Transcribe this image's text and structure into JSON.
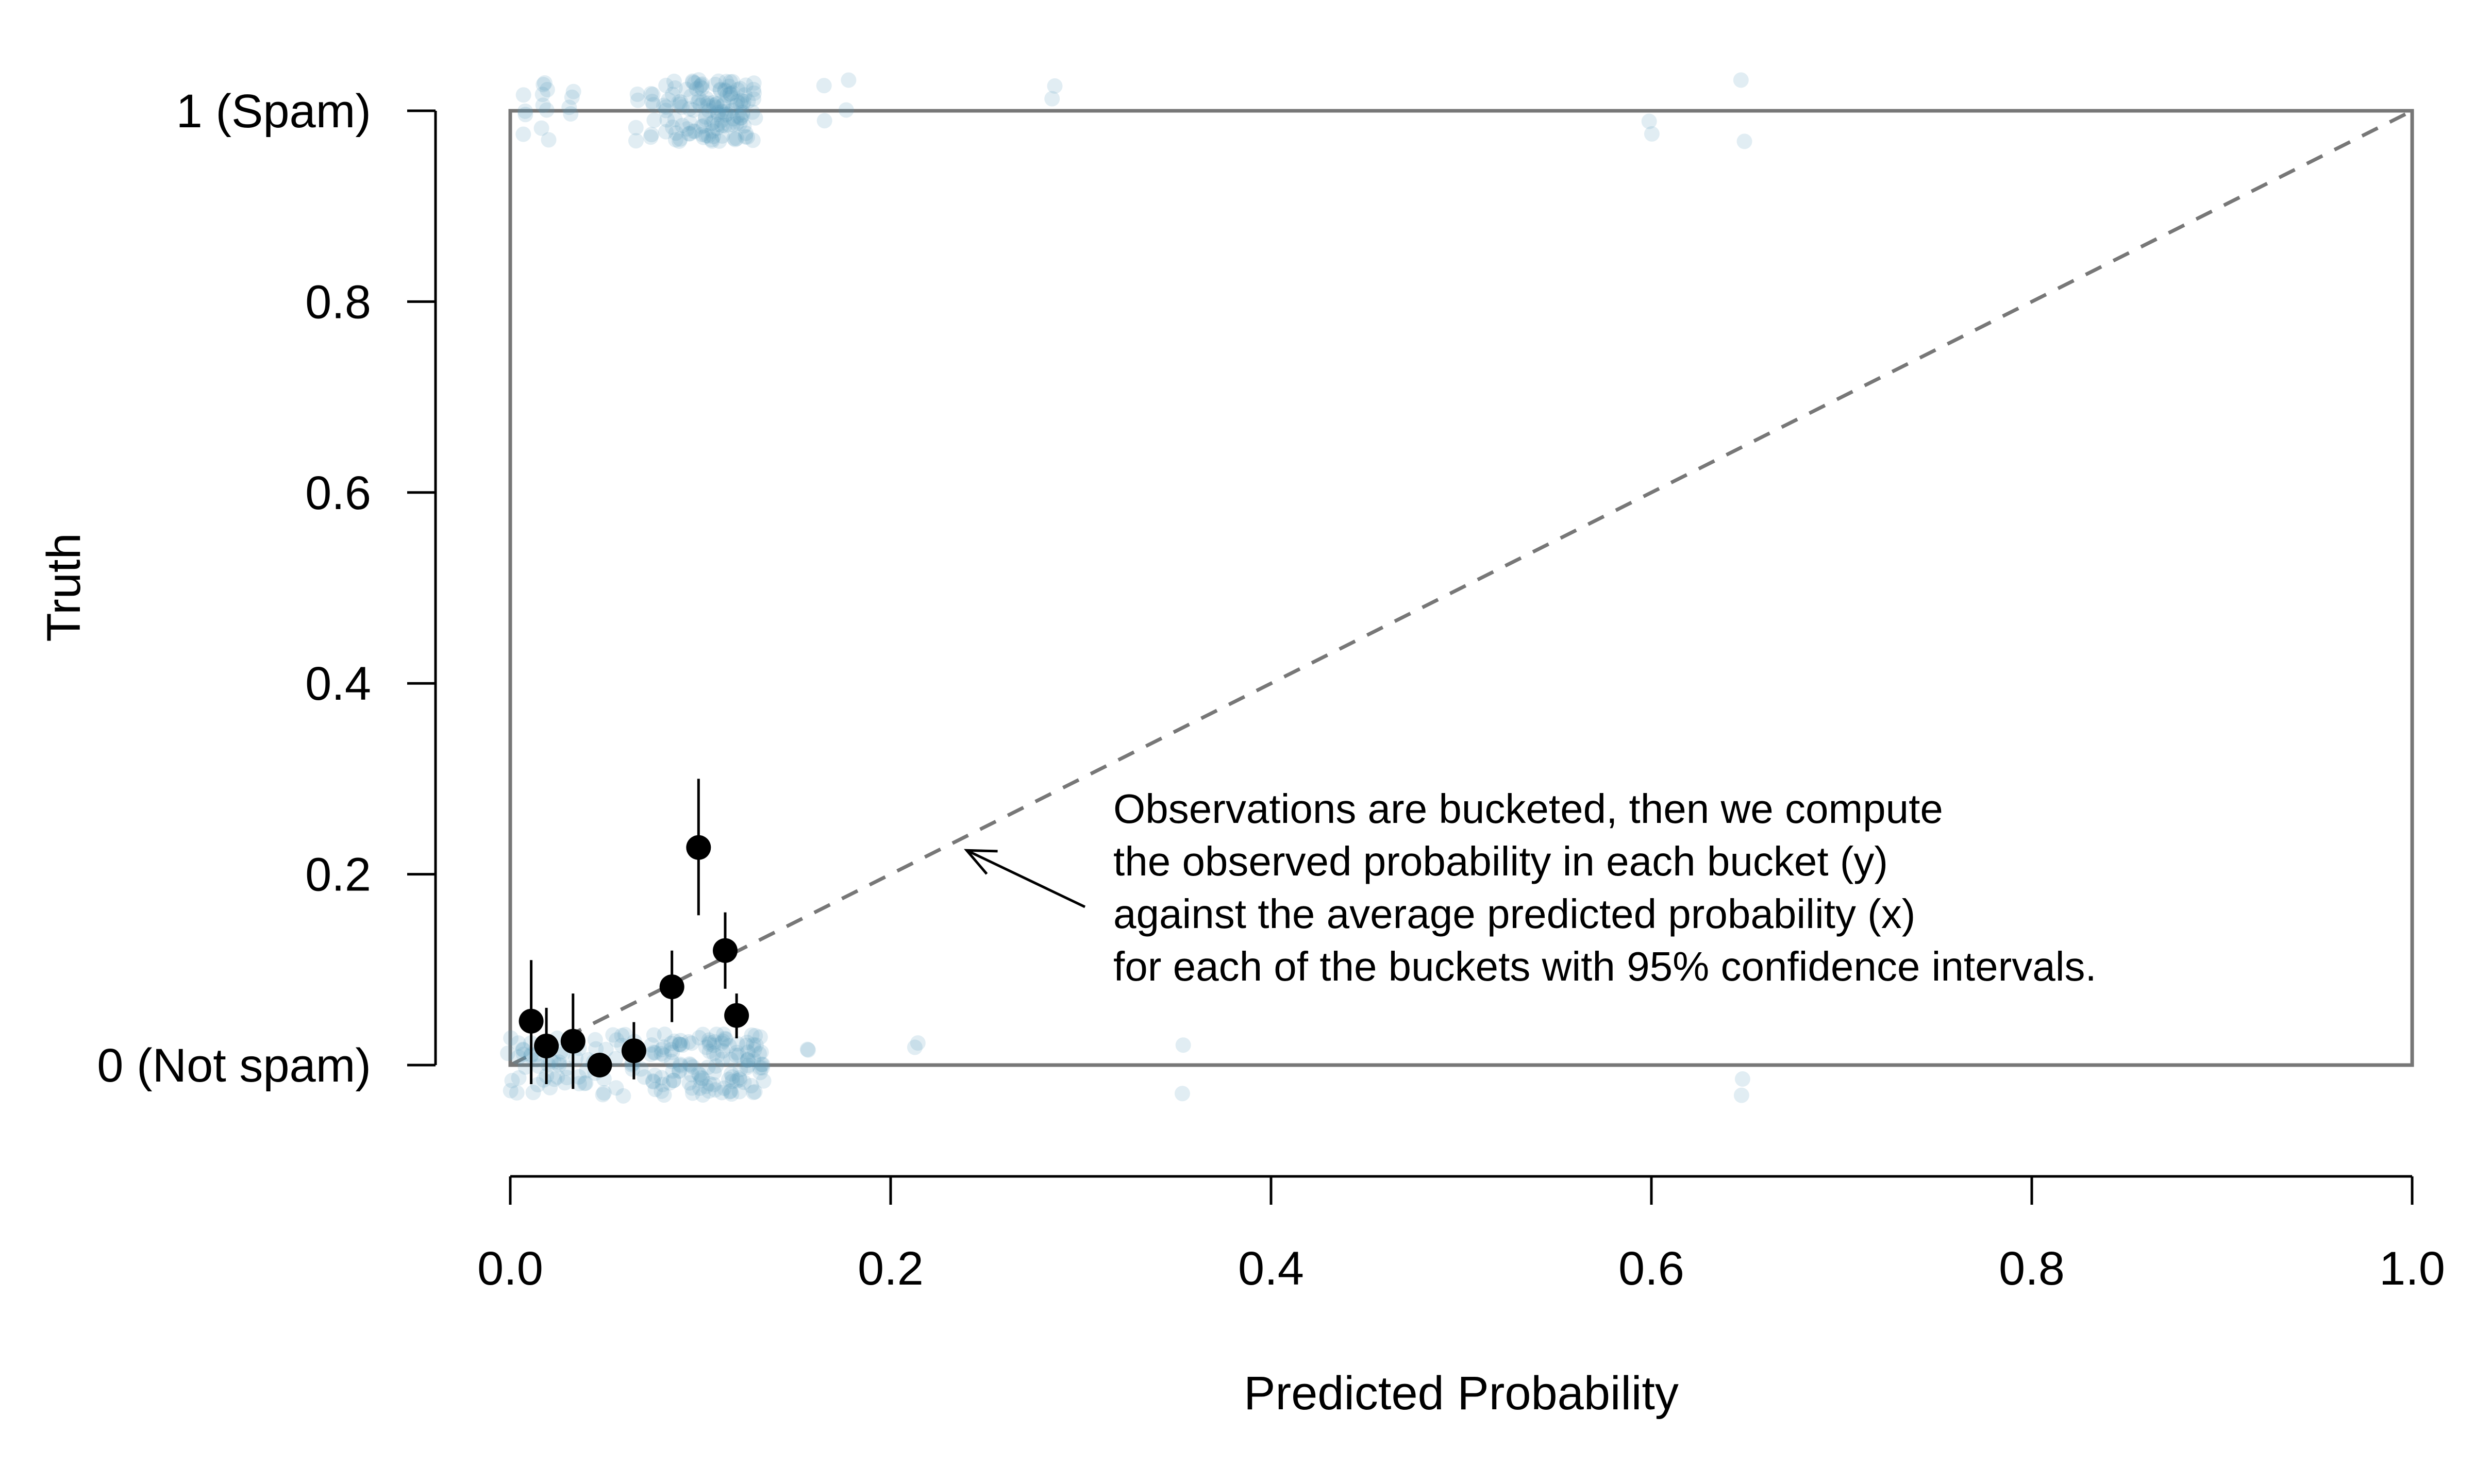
{
  "chart_data": {
    "type": "scatter",
    "xlabel": "Predicted Probability",
    "ylabel": "Truth",
    "xlim": [
      0,
      1
    ],
    "ylim": [
      0,
      1
    ],
    "x_ticks": [
      {
        "value": 0.0,
        "label": "0.0"
      },
      {
        "value": 0.2,
        "label": "0.2"
      },
      {
        "value": 0.4,
        "label": "0.4"
      },
      {
        "value": 0.6,
        "label": "0.6"
      },
      {
        "value": 0.8,
        "label": "0.8"
      },
      {
        "value": 1.0,
        "label": "1.0"
      }
    ],
    "y_ticks": [
      {
        "value": 0.0,
        "label": "0 (Not spam)"
      },
      {
        "value": 0.2,
        "label": "0.2"
      },
      {
        "value": 0.4,
        "label": "0.4"
      },
      {
        "value": 0.6,
        "label": "0.6"
      },
      {
        "value": 0.8,
        "label": "0.8"
      },
      {
        "value": 1.0,
        "label": "1 (Spam)"
      }
    ],
    "grid": false,
    "reference_line": {
      "from": [
        0,
        0
      ],
      "to": [
        1,
        1
      ],
      "style": "dashed",
      "color": "#777777"
    },
    "raw_observations": {
      "color": "#569BBD",
      "spam_x": [
        0.008,
        0.017,
        0.019,
        0.032,
        0.067,
        0.075,
        0.082,
        0.086,
        0.09,
        0.094,
        0.097,
        0.1,
        0.102,
        0.104,
        0.106,
        0.108,
        0.11,
        0.112,
        0.114,
        0.116,
        0.118,
        0.12,
        0.122,
        0.124,
        0.128,
        0.165,
        0.178,
        0.286,
        0.599,
        0.648
      ],
      "not_spam_x": [
        0.0,
        0.004,
        0.008,
        0.012,
        0.015,
        0.018,
        0.021,
        0.024,
        0.027,
        0.03,
        0.035,
        0.04,
        0.045,
        0.05,
        0.055,
        0.06,
        0.065,
        0.07,
        0.075,
        0.08,
        0.085,
        0.09,
        0.095,
        0.1,
        0.104,
        0.108,
        0.112,
        0.116,
        0.12,
        0.124,
        0.128,
        0.132,
        0.157,
        0.214,
        0.354,
        0.648
      ]
    },
    "series": [
      {
        "x": [
          0.011,
          0.019,
          0.033,
          0.047,
          0.065,
          0.085,
          0.099,
          0.113,
          0.119
        ],
        "y": [
          0.046,
          0.02,
          0.025,
          0.0,
          0.015,
          0.082,
          0.228,
          0.12,
          0.052
        ],
        "y_lower": [
          -0.02,
          -0.02,
          -0.025,
          -0.01,
          -0.015,
          0.045,
          0.157,
          0.08,
          0.028
        ],
        "y_upper": [
          0.11,
          0.06,
          0.075,
          0.01,
          0.045,
          0.12,
          0.3,
          0.16,
          0.075
        ],
        "color": "#000000"
      }
    ],
    "annotation": {
      "lines": [
        "Observations are bucketed, then we compute",
        "the observed probability in each bucket (y)",
        "against the average predicted probability (x)",
        "for each of the buckets with 95% confidence intervals."
      ],
      "points_to": [
        0.24,
        0.225
      ]
    }
  }
}
